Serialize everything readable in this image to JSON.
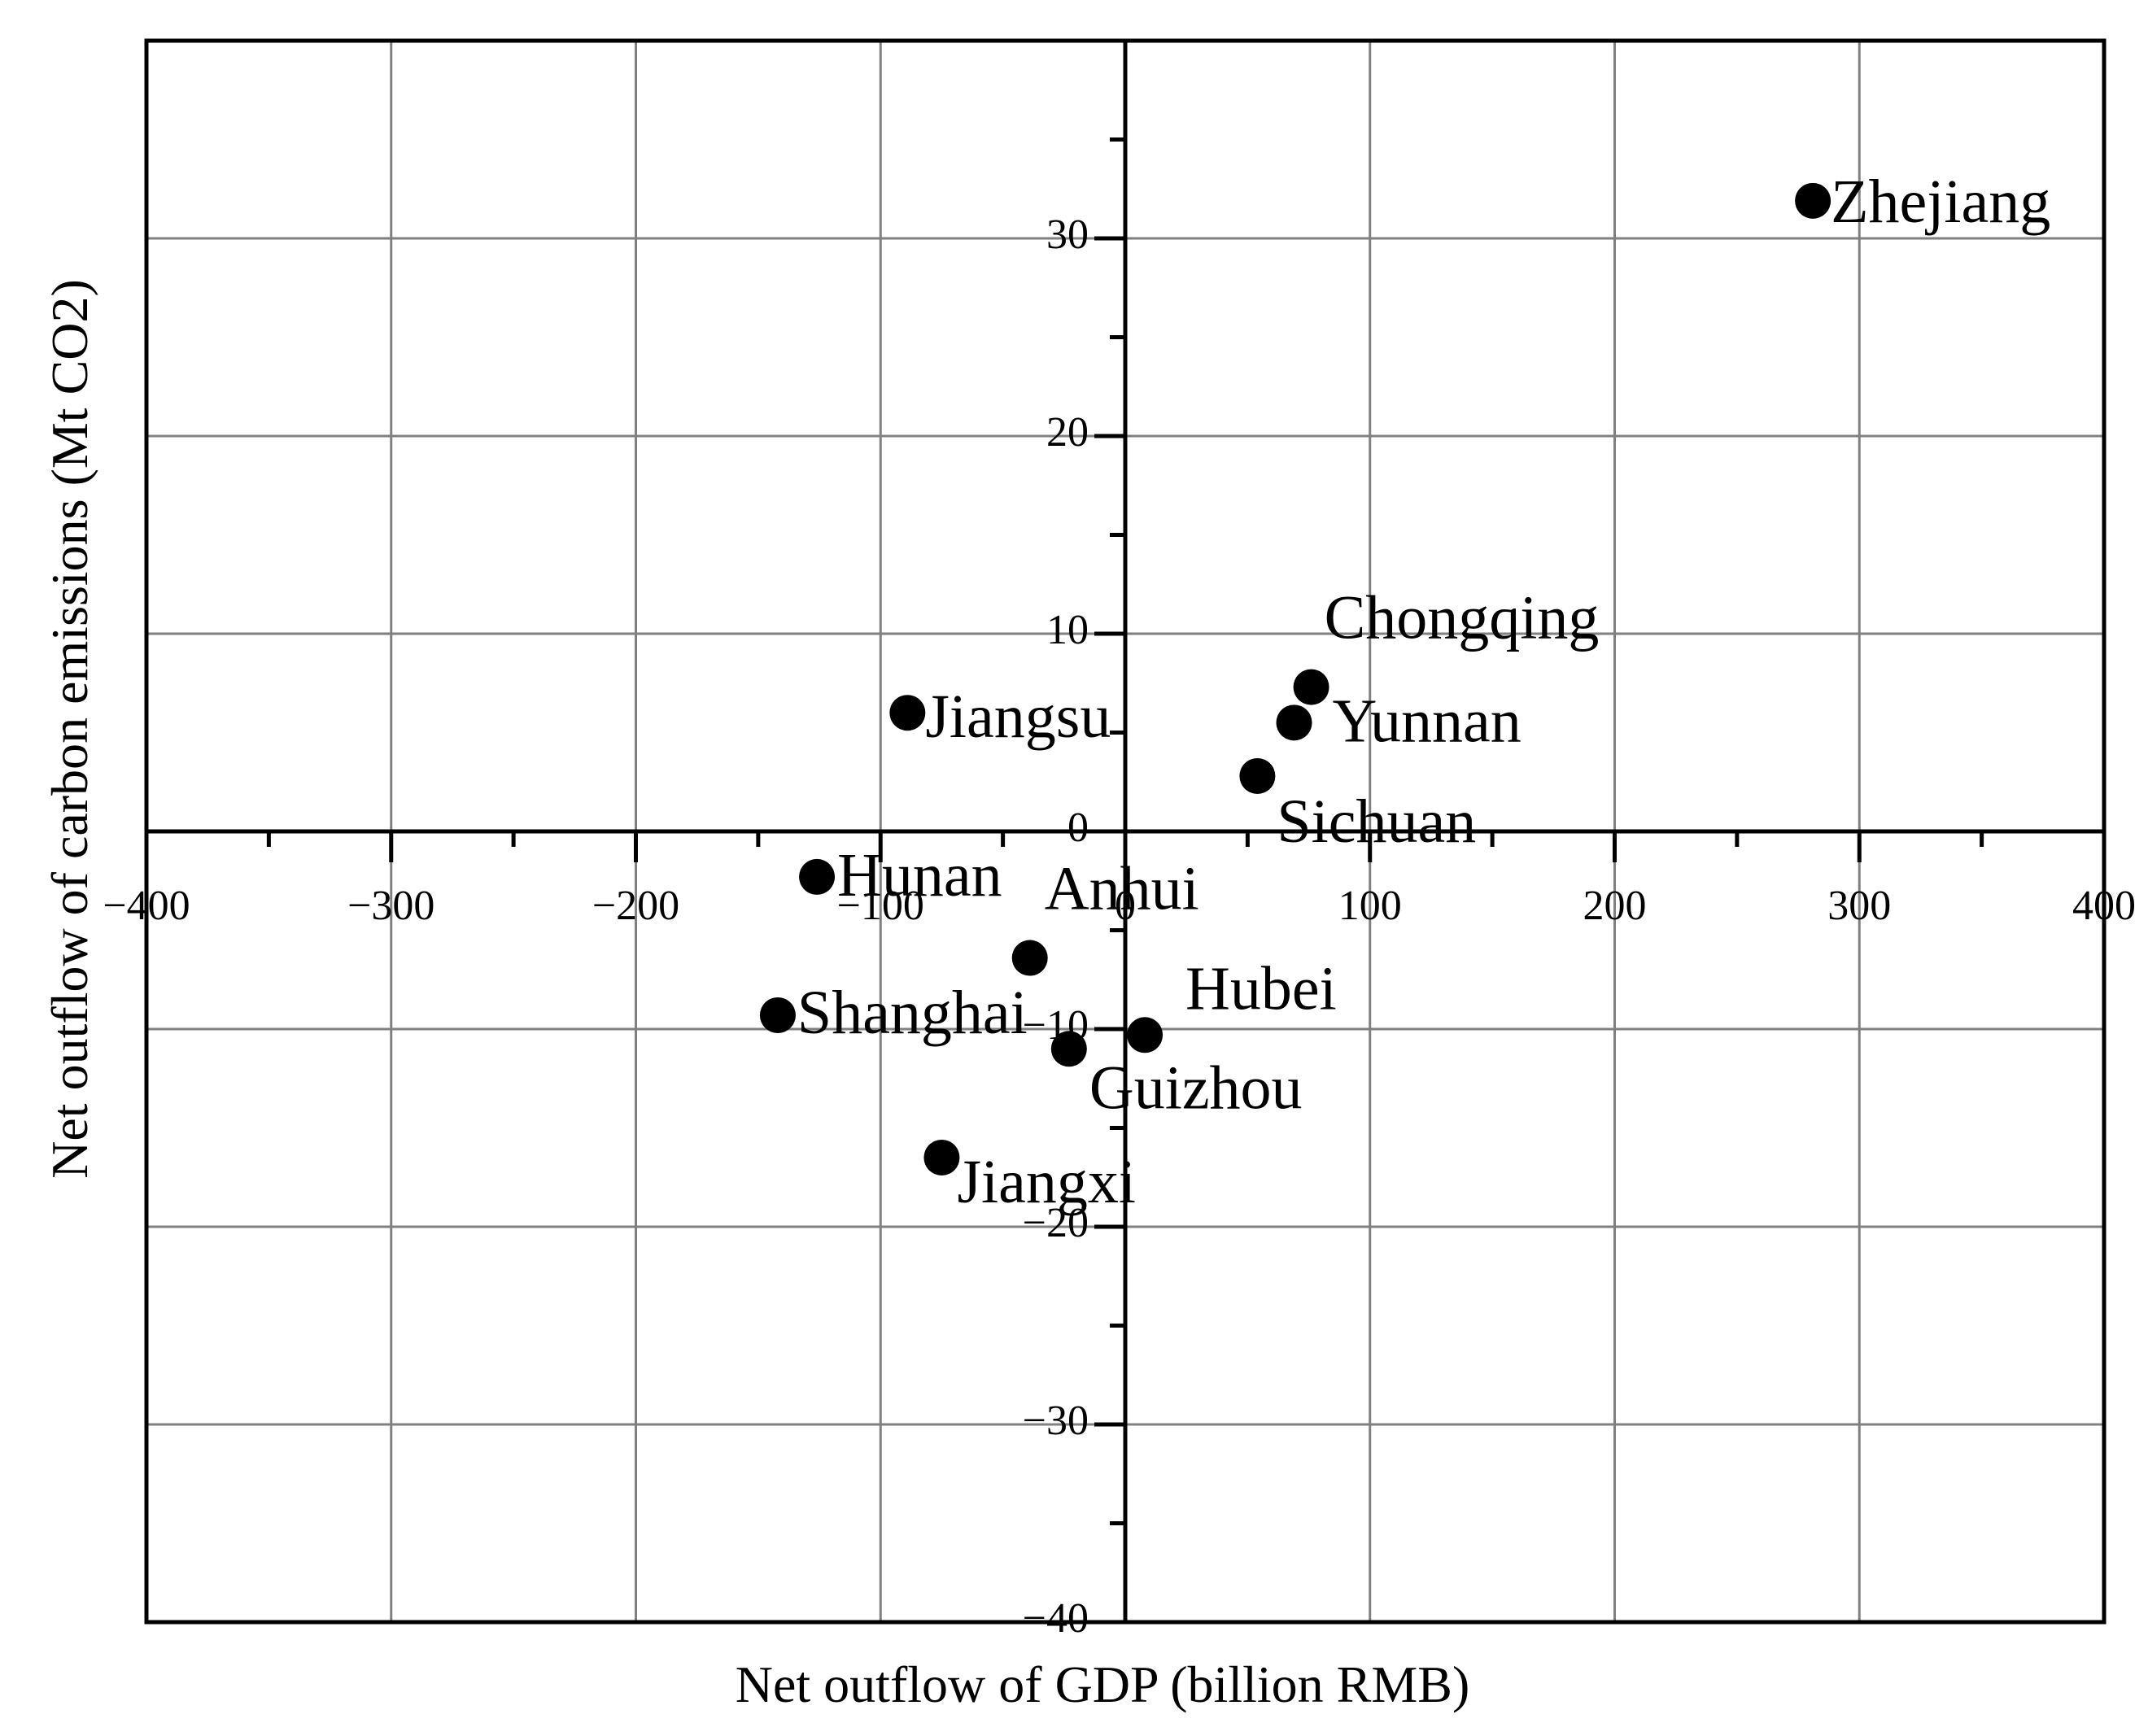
{
  "page": {
    "background": "#ffffff"
  },
  "chart_data": {
    "type": "scatter",
    "title": "",
    "xlabel": "Net outflow of GDP (billion RMB)",
    "ylabel": "Net outflow of carbon emissions (Mt CO2)",
    "xlim": [
      -400,
      400
    ],
    "ylim": [
      -40,
      40
    ],
    "grid": true,
    "legend": false,
    "colors": {
      "points": "#000000",
      "axis": "#000000",
      "gridline": "#808080",
      "text": "#000000"
    },
    "x_tick_values": [
      -400,
      -300,
      -200,
      -100,
      0,
      100,
      200,
      300,
      400
    ],
    "x_tick_labels": [
      "−400",
      "−300",
      "−200",
      "−100",
      "0",
      "100",
      "200",
      "300",
      "400"
    ],
    "x_minor_tick_values": [
      -350,
      -250,
      -150,
      -50,
      50,
      150,
      250,
      350
    ],
    "y_tick_values": [
      30,
      20,
      10,
      0,
      -10,
      -20,
      -30,
      -40
    ],
    "y_tick_labels": [
      "30",
      "20",
      "10",
      "0",
      "−10",
      "−20",
      "−30",
      "−40"
    ],
    "y_minor_tick_values": [
      35,
      25,
      15,
      5,
      -5,
      -15,
      -25,
      -35
    ],
    "grid_x_values": [
      -300,
      -200,
      -100,
      100,
      200,
      300
    ],
    "grid_y_values": [
      30,
      20,
      10,
      -10,
      -20,
      -30
    ],
    "points": [
      {
        "name": "Zhejiang",
        "x": 281,
        "y": 31.9,
        "label_offset": [
          22,
          26
        ]
      },
      {
        "name": "Chongqing",
        "x": 76,
        "y": 7.3,
        "label_offset": [
          16,
          -60
        ]
      },
      {
        "name": "Yunnan",
        "x": 69,
        "y": 5.5,
        "label_offset": [
          47,
          23
        ]
      },
      {
        "name": "Sichuan",
        "x": 54,
        "y": 2.8,
        "label_offset": [
          24,
          81
        ]
      },
      {
        "name": "Jiangsu",
        "x": -89,
        "y": 6.0,
        "label_offset": [
          22,
          30
        ]
      },
      {
        "name": "Hunan",
        "x": -126,
        "y": -2.3,
        "label_offset": [
          25,
          23
        ]
      },
      {
        "name": "Anhui",
        "x": -39,
        "y": -6.4,
        "label_offset": [
          18,
          -60
        ]
      },
      {
        "name": "Hubei",
        "x": 8,
        "y": -10.3,
        "label_offset": [
          50,
          -32
        ]
      },
      {
        "name": "Shanghai",
        "x": -142,
        "y": -9.3,
        "label_offset": [
          24,
          22
        ]
      },
      {
        "name": "Guizhou",
        "x": -23,
        "y": -11.0,
        "label_offset": [
          25,
          73
        ]
      },
      {
        "name": "Jiangxi",
        "x": -75,
        "y": -16.5,
        "label_offset": [
          19,
          55
        ]
      }
    ]
  }
}
